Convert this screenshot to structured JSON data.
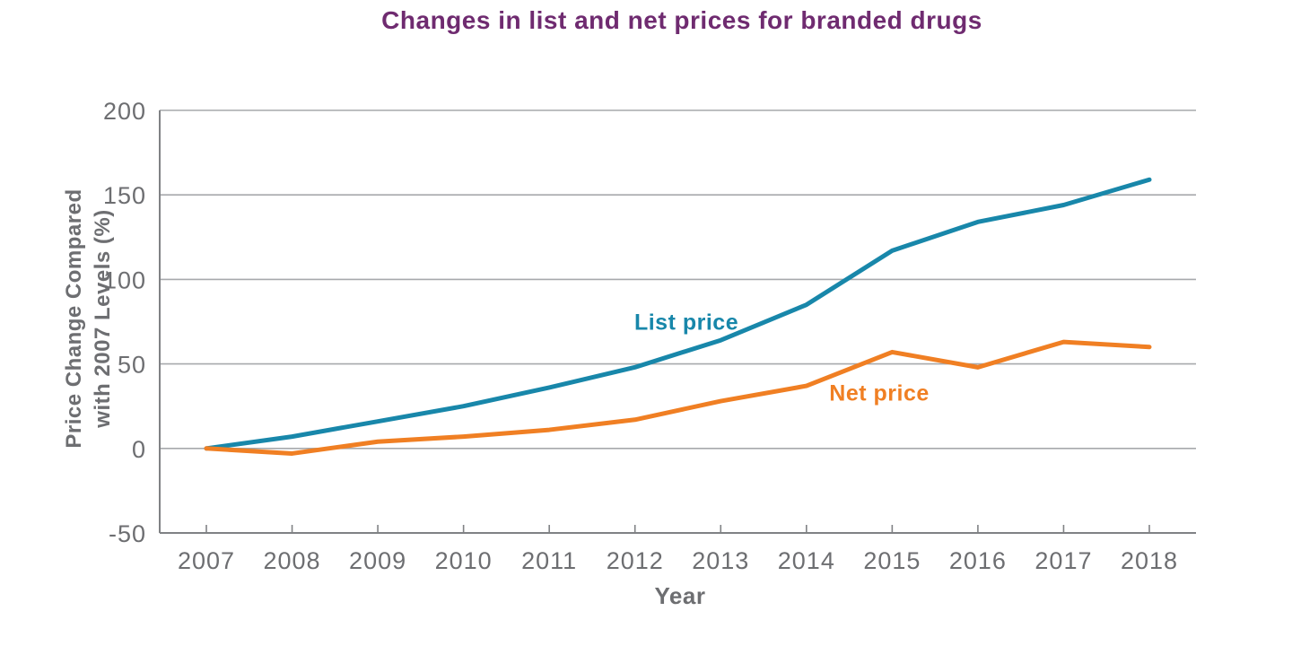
{
  "figure": {
    "title": "Changes in list and net prices for branded drugs"
  },
  "colors": {
    "background": "#ffffff",
    "title": "#6f2b70",
    "axis_text": "#6d6e71",
    "axis_line": "#808285",
    "gridline": "#a7a9ac",
    "list_price": "#1887aa",
    "net_price": "#f07f23"
  },
  "chart_data": {
    "type": "line",
    "title": "Changes in list and net prices for branded drugs",
    "xlabel": "Year",
    "ylabel": "Price Change Compared with 2007 Levels (%)",
    "ylabel_lines": [
      "Price Change Compared",
      "with 2007 Levels (%)"
    ],
    "x": [
      2007,
      2008,
      2009,
      2010,
      2011,
      2012,
      2013,
      2014,
      2015,
      2016,
      2017,
      2018
    ],
    "series": [
      {
        "name": "List price",
        "color": "#1887aa",
        "values": [
          0,
          7,
          16,
          25,
          36,
          48,
          64,
          85,
          117,
          134,
          144,
          159
        ],
        "label_at": {
          "x": 2012.6,
          "y": 75
        }
      },
      {
        "name": "Net price",
        "color": "#f07f23",
        "values": [
          0,
          -3,
          4,
          7,
          11,
          17,
          28,
          37,
          57,
          48,
          63,
          60
        ],
        "label_at": {
          "x": 2014.85,
          "y": 33
        }
      }
    ],
    "ylim": [
      -50,
      200
    ],
    "yticks": [
      200,
      150,
      100,
      50,
      0,
      -50
    ],
    "xticks": [
      2007,
      2008,
      2009,
      2010,
      2011,
      2012,
      2013,
      2014,
      2015,
      2016,
      2017,
      2018
    ],
    "grid": "horizontal-only",
    "legend": "inline-labels"
  }
}
